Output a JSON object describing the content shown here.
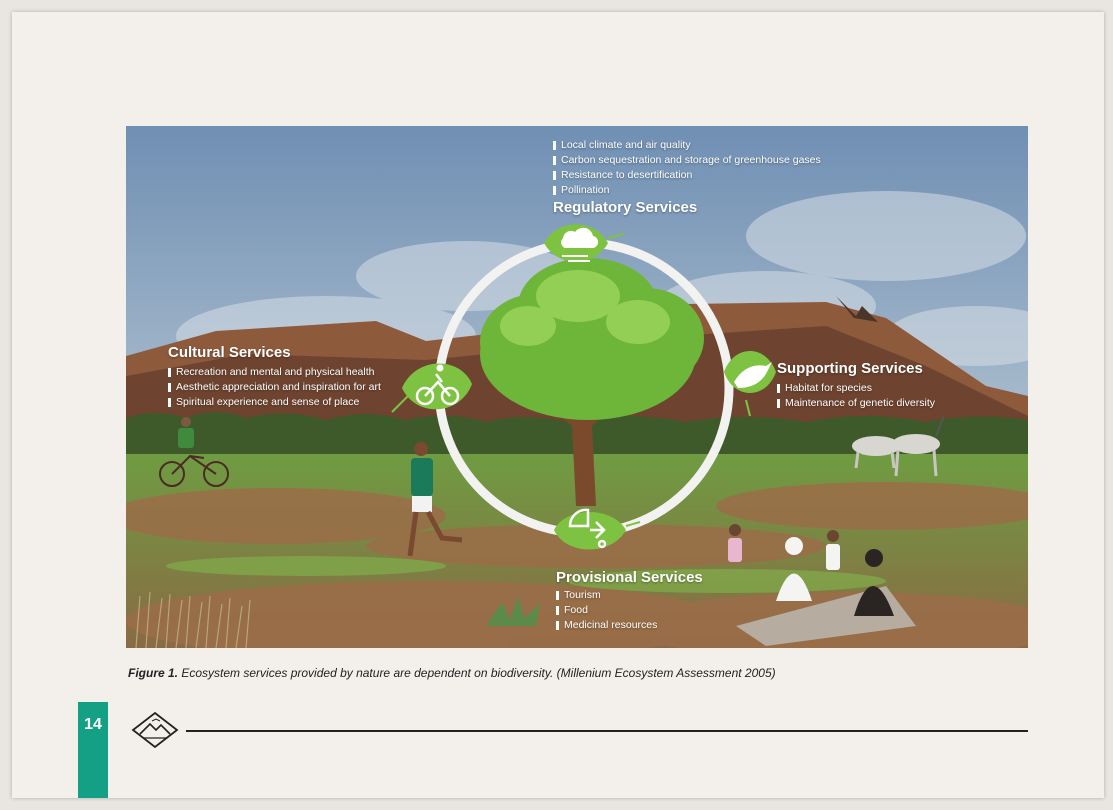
{
  "regulatory": {
    "title": "Regulatory Services",
    "items": [
      "Local climate and air quality",
      "Carbon sequestration and storage of greenhouse gases",
      "Resistance to desertification",
      "Pollination"
    ]
  },
  "cultural": {
    "title": "Cultural Services",
    "items": [
      "Recreation and mental and physical health",
      "Aesthetic appreciation and inspiration for art",
      "Spiritual experience and sense of place"
    ]
  },
  "supporting": {
    "title": "Supporting Services",
    "items": [
      "Habitat for species",
      "Maintenance of genetic diversity"
    ]
  },
  "provisional": {
    "title": "Provisional Services",
    "items": [
      "Tourism",
      "Food",
      "Medicinal resources"
    ]
  },
  "caption": {
    "label": "Figure 1.",
    "text": " Ecosystem services provided by nature are dependent on biodiversity. (Millenium Ecosystem Assessment 2005)"
  },
  "footer": {
    "page_number": "14"
  },
  "icons": {
    "regulatory": "cloud-wind-icon",
    "cultural": "cyclist-icon",
    "supporting": "bird-icon",
    "provisional": "food-chart-icon",
    "logo": "mountain-badge-icon"
  },
  "colors": {
    "accent": "#14a085",
    "leaf": "#7ec242",
    "sky": "#7e9fbf"
  }
}
